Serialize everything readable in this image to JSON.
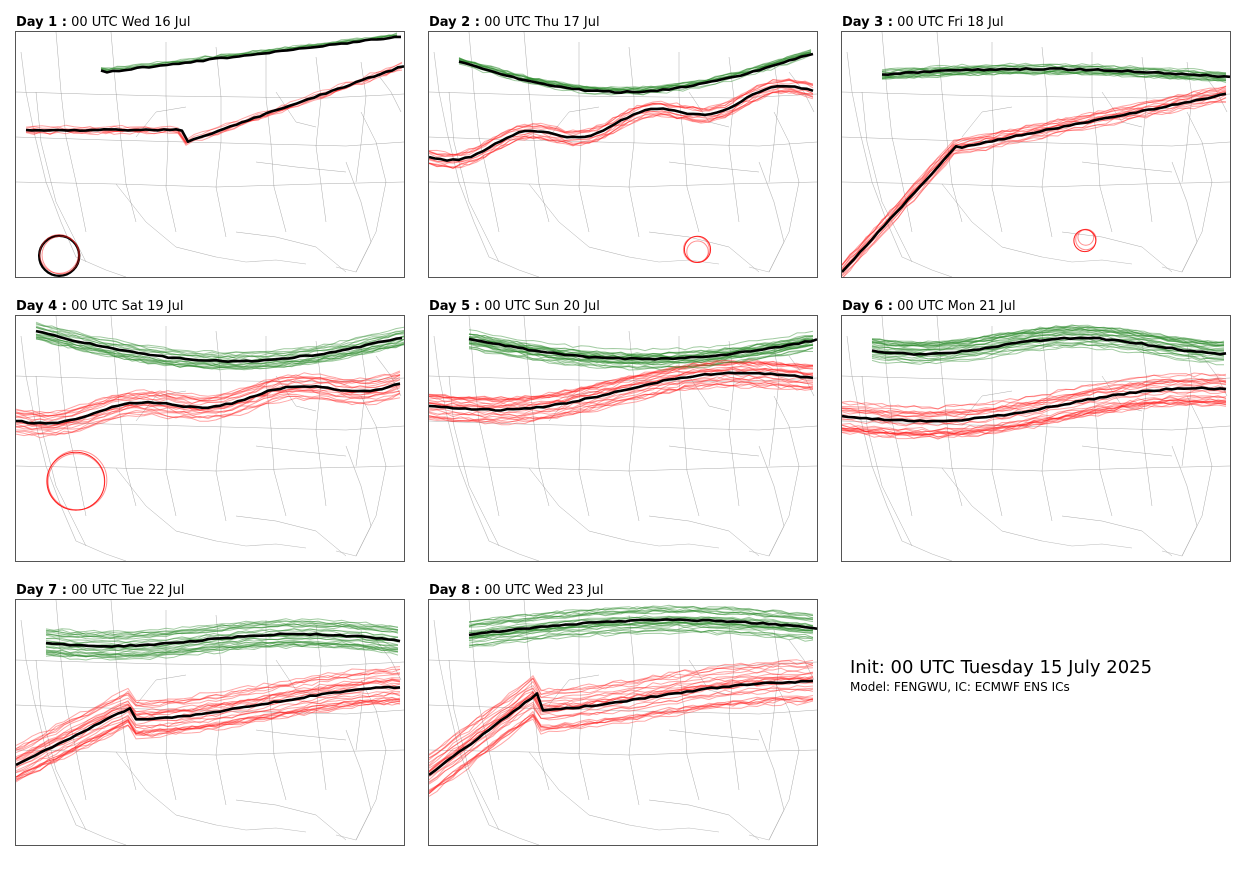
{
  "panels": [
    {
      "day_label": "Day 1 :",
      "time_label": "00 UTC Wed 16 Jul"
    },
    {
      "day_label": "Day 2 :",
      "time_label": "00 UTC Thu 17 Jul"
    },
    {
      "day_label": "Day 3 :",
      "time_label": "00 UTC Fri 18 Jul"
    },
    {
      "day_label": "Day 4 :",
      "time_label": "00 UTC Sat 19 Jul"
    },
    {
      "day_label": "Day 5 :",
      "time_label": "00 UTC Sun 20 Jul"
    },
    {
      "day_label": "Day 6 :",
      "time_label": "00 UTC Mon 21 Jul"
    },
    {
      "day_label": "Day 7 :",
      "time_label": "00 UTC Tue 22 Jul"
    },
    {
      "day_label": "Day 8 :",
      "time_label": "00 UTC Wed 23 Jul"
    }
  ],
  "info": {
    "init": "Init: 00 UTC Tuesday 15 July 2025",
    "model": "Model: FENGWU, IC: ECMWF ENS ICs"
  },
  "colors": {
    "north_contour": "#2e8b2e",
    "south_contour": "#ff2020",
    "mean_contour": "#000000",
    "borders": "#888888"
  }
}
